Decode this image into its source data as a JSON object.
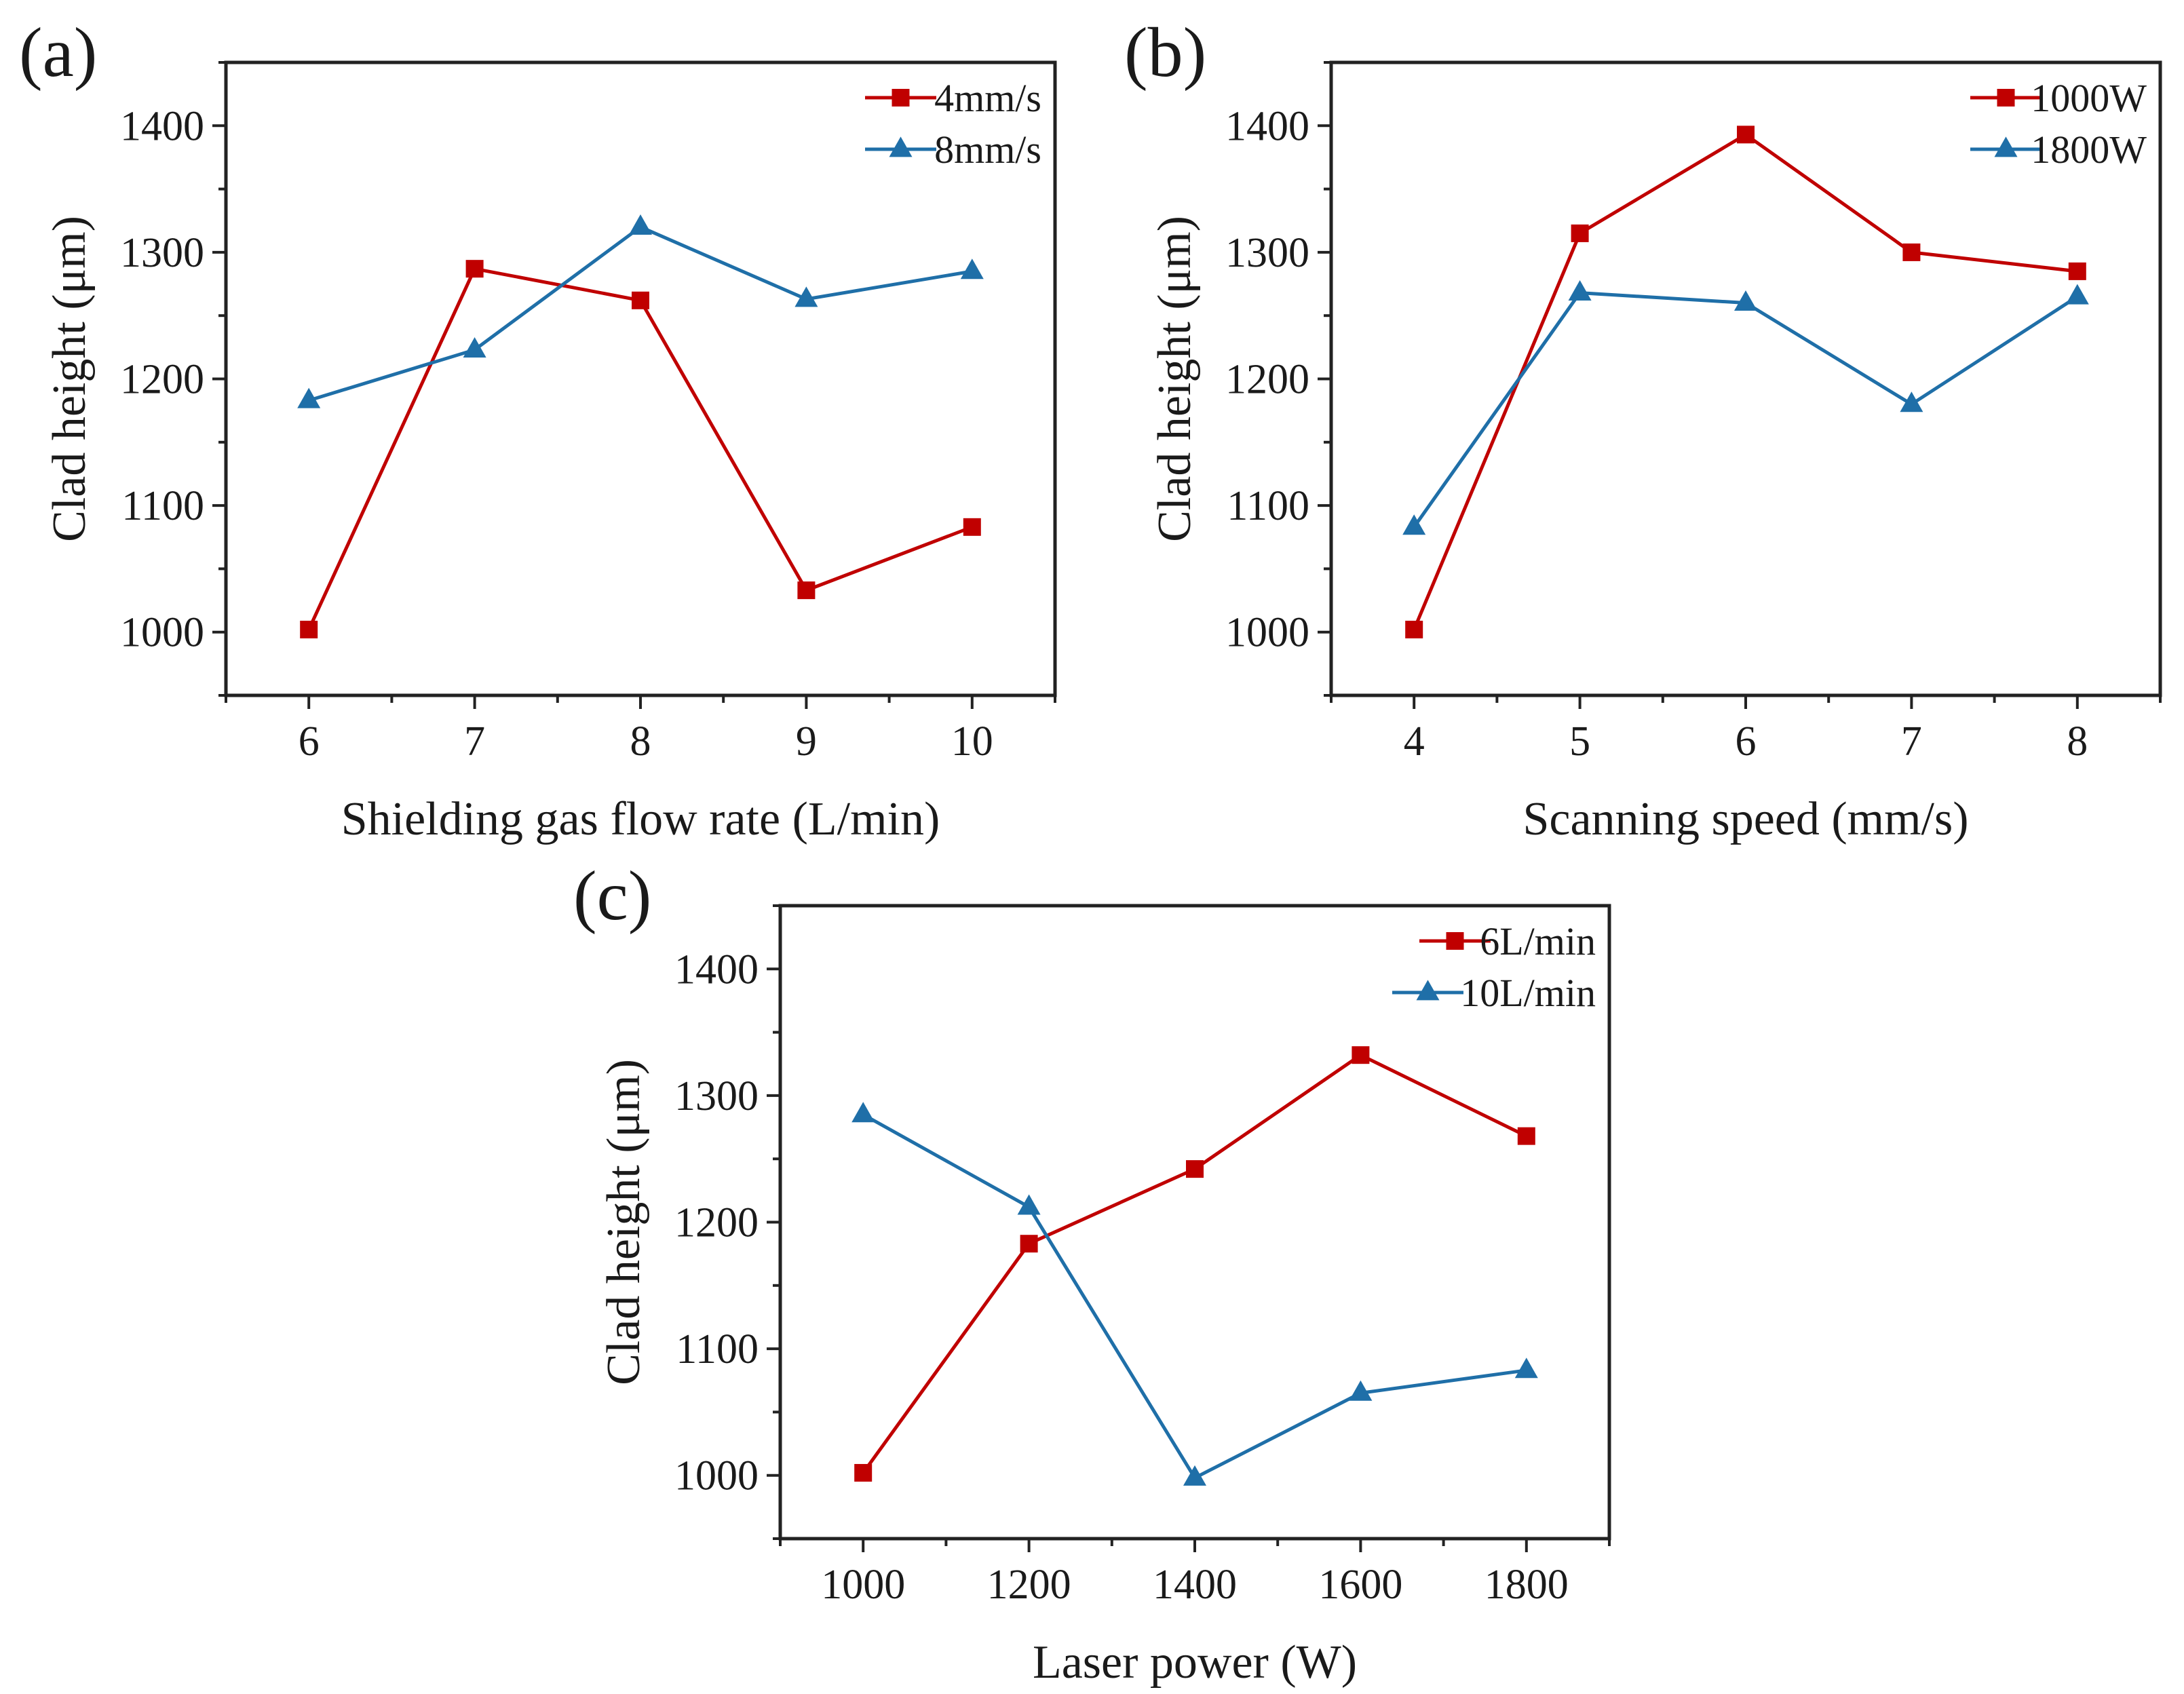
{
  "colors": {
    "series_red": "#c00000",
    "series_blue": "#1f6fa8",
    "axis": "#222222"
  },
  "chart_data": [
    {
      "type": "line",
      "panel_label": "(a)",
      "title": "",
      "xlabel": "Shielding gas flow rate (L/min)",
      "ylabel": "Clad height (μm)",
      "x": [
        6,
        7,
        8,
        9,
        10
      ],
      "x_tick_labels": [
        "6",
        "7",
        "8",
        "9",
        "10"
      ],
      "y_ticks": [
        1000,
        1100,
        1200,
        1300,
        1400
      ],
      "y_tick_labels": [
        "1000",
        "1100",
        "1200",
        "1300",
        "1400"
      ],
      "xlim": [
        5.5,
        10.5
      ],
      "ylim": [
        950,
        1450
      ],
      "legend_position": "top-right",
      "series": [
        {
          "name": "4mm/s",
          "marker": "square",
          "color": "#c00000",
          "values": [
            1002,
            1287,
            1262,
            1033,
            1083
          ]
        },
        {
          "name": "8mm/s",
          "marker": "triangle",
          "color": "#1f6fa8",
          "values": [
            1183,
            1223,
            1320,
            1263,
            1285
          ]
        }
      ]
    },
    {
      "type": "line",
      "panel_label": "(b)",
      "title": "",
      "xlabel": "Scanning speed (mm/s)",
      "ylabel": "Clad height (μm)",
      "x": [
        4,
        5,
        6,
        7,
        8
      ],
      "x_tick_labels": [
        "4",
        "5",
        "6",
        "7",
        "8"
      ],
      "y_ticks": [
        1000,
        1100,
        1200,
        1300,
        1400
      ],
      "y_tick_labels": [
        "1000",
        "1100",
        "1200",
        "1300",
        "1400"
      ],
      "xlim": [
        3.5,
        8.5
      ],
      "ylim": [
        950,
        1450
      ],
      "legend_position": "top-right",
      "series": [
        {
          "name": "1000W",
          "marker": "square",
          "color": "#c00000",
          "values": [
            1002,
            1315,
            1393,
            1300,
            1285
          ]
        },
        {
          "name": "1800W",
          "marker": "triangle",
          "color": "#1f6fa8",
          "values": [
            1083,
            1268,
            1260,
            1180,
            1265
          ]
        }
      ]
    },
    {
      "type": "line",
      "panel_label": "(c)",
      "title": "",
      "xlabel": "Laser power (W)",
      "ylabel": "Clad height (μm)",
      "x": [
        1000,
        1200,
        1400,
        1600,
        1800
      ],
      "x_tick_labels": [
        "1000",
        "1200",
        "1400",
        "1600",
        "1800"
      ],
      "y_ticks": [
        1000,
        1100,
        1200,
        1300,
        1400
      ],
      "y_tick_labels": [
        "1000",
        "1100",
        "1200",
        "1300",
        "1400"
      ],
      "xlim": [
        900,
        1900
      ],
      "ylim": [
        950,
        1450
      ],
      "legend_position": "top-right",
      "series": [
        {
          "name": "6L/min",
          "marker": "square",
          "color": "#c00000",
          "values": [
            1002,
            1183,
            1242,
            1332,
            1268
          ]
        },
        {
          "name": "10L/min",
          "marker": "triangle",
          "color": "#1f6fa8",
          "values": [
            1285,
            1212,
            998,
            1065,
            1083
          ]
        }
      ]
    }
  ]
}
